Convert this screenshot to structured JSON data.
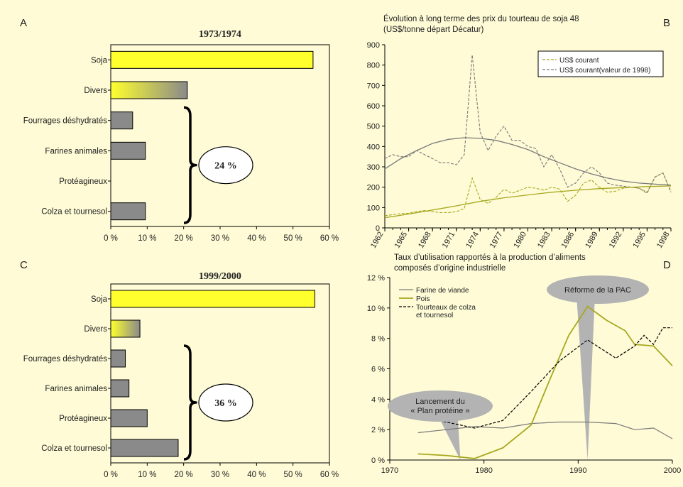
{
  "colors": {
    "background": "#fefbd6",
    "soja": "#ffff2e",
    "divers_start": "#ffff2e",
    "divers_end": "#8a8a8a",
    "grey_bar": "#8a8a8a",
    "olive": "#a8a820",
    "dark_grey_line": "#7a7a7a",
    "callout_grey": "#b3b3b3"
  },
  "chart_data": [
    {
      "panel": "A",
      "type": "bar",
      "orientation": "horizontal",
      "title": "1973/1974",
      "categories": [
        "Soja",
        "Divers",
        "Fourrages déshydratés",
        "Farines animales",
        "Protéagineux",
        "Colza et tournesol"
      ],
      "values": [
        55.5,
        21,
        6,
        9.5,
        0,
        9.5
      ],
      "fills": [
        "soja",
        "divers-gradient",
        "grey",
        "grey",
        "grey",
        "grey"
      ],
      "xticks": [
        "0 %",
        "10 %",
        "20 %",
        "30 %",
        "40 %",
        "50 %",
        "60 %"
      ],
      "xlim": [
        0,
        60
      ],
      "brace_label": "24 %"
    },
    {
      "panel": "B",
      "type": "line",
      "title": "Évolution à long terme des prix du tourteau de soja 48",
      "subtitle": "(US$/tonne départ Décatur)",
      "ylim": [
        0,
        900
      ],
      "yticks": [
        "0",
        "100",
        "200",
        "300",
        "400",
        "500",
        "600",
        "700",
        "800",
        "900"
      ],
      "xlim": [
        1962,
        1998
      ],
      "xticks": [
        "1962",
        "1965",
        "1968",
        "1971",
        "1974",
        "1977",
        "1980",
        "1983",
        "1986",
        "1989",
        "1992",
        "1995",
        "1998"
      ],
      "legend_position": "top-right",
      "series": [
        {
          "name": "US$ courant",
          "style": "dashed",
          "color": "olive",
          "x": [
            1962,
            1963,
            1964,
            1965,
            1966,
            1967,
            1968,
            1969,
            1970,
            1971,
            1972,
            1973,
            1974,
            1975,
            1976,
            1977,
            1978,
            1979,
            1980,
            1981,
            1982,
            1983,
            1984,
            1985,
            1986,
            1987,
            1988,
            1989,
            1990,
            1991,
            1992,
            1993,
            1994,
            1995,
            1996,
            1997,
            1998
          ],
          "y": [
            60,
            65,
            70,
            72,
            80,
            85,
            80,
            75,
            75,
            80,
            95,
            245,
            140,
            120,
            150,
            190,
            170,
            185,
            200,
            195,
            185,
            200,
            190,
            130,
            160,
            220,
            235,
            200,
            175,
            180,
            195,
            200,
            195,
            175,
            250,
            270,
            180
          ]
        },
        {
          "name": "US$ courant(valeur de 1998)",
          "style": "dashed",
          "color": "dark-grey",
          "x": [
            1962,
            1963,
            1964,
            1965,
            1966,
            1967,
            1968,
            1969,
            1970,
            1971,
            1972,
            1973,
            1974,
            1975,
            1976,
            1977,
            1978,
            1979,
            1980,
            1981,
            1982,
            1983,
            1984,
            1985,
            1986,
            1987,
            1988,
            1989,
            1990,
            1991,
            1992,
            1993,
            1994,
            1995,
            1996,
            1997,
            1998
          ],
          "y": [
            340,
            360,
            350,
            350,
            380,
            360,
            340,
            320,
            320,
            310,
            360,
            850,
            470,
            380,
            450,
            500,
            430,
            430,
            400,
            390,
            300,
            360,
            290,
            200,
            220,
            270,
            300,
            270,
            220,
            210,
            205,
            200,
            195,
            170,
            250,
            270,
            175
          ]
        },
        {
          "name": "",
          "style": "solid",
          "color": "dark-grey",
          "x": [
            1962,
            1964,
            1966,
            1968,
            1970,
            1972,
            1974,
            1976,
            1978,
            1980,
            1982,
            1984,
            1986,
            1988,
            1990,
            1992,
            1994,
            1996,
            1998
          ],
          "y": [
            290,
            340,
            380,
            415,
            435,
            443,
            440,
            430,
            410,
            385,
            350,
            320,
            290,
            265,
            245,
            230,
            220,
            215,
            210
          ]
        },
        {
          "name": "",
          "style": "solid",
          "color": "olive",
          "x": [
            1962,
            1965,
            1968,
            1971,
            1974,
            1977,
            1980,
            1983,
            1986,
            1989,
            1992,
            1995,
            1998
          ],
          "y": [
            50,
            68,
            88,
            108,
            130,
            148,
            162,
            175,
            185,
            193,
            198,
            203,
            206
          ]
        }
      ]
    },
    {
      "panel": "C",
      "type": "bar",
      "orientation": "horizontal",
      "title": "1999/2000",
      "categories": [
        "Soja",
        "Divers",
        "Fourrages déshydratés",
        "Farines animales",
        "Protéagineux",
        "Colza et tournesol"
      ],
      "values": [
        56,
        8,
        4,
        5,
        10,
        18.5
      ],
      "fills": [
        "soja",
        "divers-gradient",
        "grey",
        "grey",
        "grey",
        "grey"
      ],
      "xticks": [
        "0 %",
        "10 %",
        "20 %",
        "30 %",
        "40 %",
        "50 %",
        "60 %"
      ],
      "xlim": [
        0,
        60
      ],
      "brace_label": "36 %"
    },
    {
      "panel": "D",
      "type": "line",
      "title": "Taux d’utilisation rapportés à la production d’aliments",
      "subtitle": "composés d’origine industrielle",
      "ylim": [
        0,
        12
      ],
      "yticks": [
        "0 %",
        "2 %",
        "4 %",
        "6 %",
        "8 %",
        "10 %",
        "12 %"
      ],
      "xlim": [
        1970,
        2000
      ],
      "xticks": [
        "1970",
        "1980",
        "1990",
        "2000"
      ],
      "legend_position": "top-left",
      "series": [
        {
          "name": "Farine de viande",
          "style": "solid",
          "color": "dark-grey",
          "x": [
            1973,
            1976,
            1979,
            1982,
            1985,
            1988,
            1991,
            1994,
            1996,
            1998,
            2000
          ],
          "y": [
            1.8,
            2.0,
            2.2,
            2.1,
            2.4,
            2.5,
            2.5,
            2.4,
            2.0,
            2.1,
            1.4
          ]
        },
        {
          "name": "Pois",
          "style": "solid",
          "color": "olive",
          "x": [
            1973,
            1976,
            1979,
            1982,
            1985,
            1987,
            1989,
            1991,
            1993,
            1995,
            1996,
            1998,
            2000
          ],
          "y": [
            0.4,
            0.3,
            0.1,
            0.8,
            2.3,
            5.3,
            8.2,
            10.1,
            9.2,
            8.5,
            7.6,
            7.5,
            6.2
          ]
        },
        {
          "name": "Tourteaux de colza et tournesol",
          "style": "dashed",
          "color": "black",
          "x": [
            1973,
            1976,
            1979,
            1982,
            1985,
            1988,
            1991,
            1994,
            1996,
            1997,
            1998,
            1999,
            2000
          ],
          "y": [
            2.8,
            2.5,
            2.1,
            2.6,
            4.5,
            6.5,
            7.9,
            6.7,
            7.5,
            8.2,
            7.6,
            8.7,
            8.7
          ]
        }
      ],
      "annotations": [
        {
          "label_lines": [
            "Lancement du",
            "« Plan protéine »"
          ],
          "x": 1977.5,
          "y": 0
        },
        {
          "label_lines": [
            "Réforme de la PAC"
          ],
          "x": 1991,
          "y": 0
        }
      ]
    }
  ],
  "panel_letters": [
    "A",
    "B",
    "C",
    "D"
  ]
}
